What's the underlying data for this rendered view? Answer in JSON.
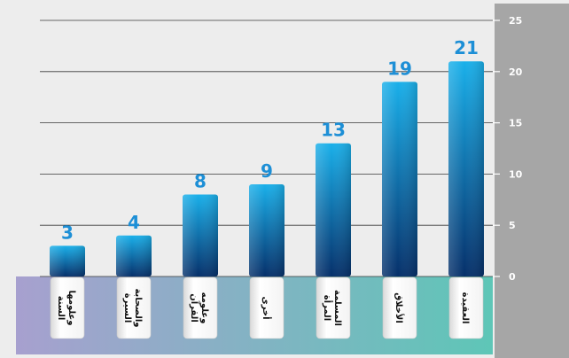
{
  "chart_data": {
    "type": "bar",
    "categories": [
      [
        "السنة",
        "وعلومها"
      ],
      [
        "السيرة",
        "والصحابة"
      ],
      [
        "القرآن",
        "وعلومه"
      ],
      [
        "أخرى"
      ],
      [
        "المرأة",
        "المسلمة"
      ],
      [
        "الأخلاق"
      ],
      [
        "العقيدة"
      ]
    ],
    "values": [
      3,
      4,
      8,
      9,
      13,
      19,
      21
    ],
    "data_labels": [
      "3",
      "4",
      "8",
      "9",
      "13",
      "19",
      "21"
    ],
    "y_ticks": [
      0,
      5,
      10,
      15,
      20,
      25
    ],
    "ylim": [
      0,
      25
    ],
    "y_axis_side": "right",
    "grid": true,
    "colors": {
      "bar_top": "#1ab0ea",
      "bar_bottom": "#06306a",
      "value_label": "#1d8fd6",
      "axis_panel": "#a6a6a6",
      "band_left": "#a7a0cf",
      "band_right": "#5ec6b7",
      "background": "#ededed"
    }
  }
}
